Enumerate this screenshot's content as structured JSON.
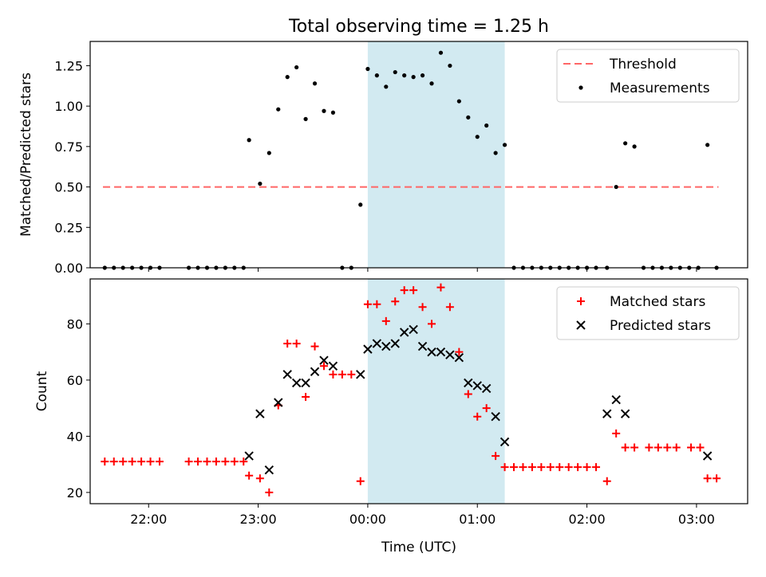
{
  "title": "Total observing time = 1.25 h",
  "chart_data": [
    {
      "type": "scatter",
      "title": "Total observing time = 1.25 h",
      "xlabel": "",
      "ylabel": "Matched/Predicted stars",
      "xlim": [
        "21:28",
        "03:28"
      ],
      "ylim": [
        0,
        1.4
      ],
      "yticks": [
        "0.00",
        "0.25",
        "0.50",
        "0.75",
        "1.00",
        "1.25"
      ],
      "legend_position": "top-right",
      "shaded_interval": [
        "00:00",
        "01:15"
      ],
      "shade_color": "#add8e6",
      "series": [
        {
          "name": "Threshold",
          "kind": "line",
          "style": "dashed",
          "color": "#ff6666",
          "points": [
            [
              "21:35",
              0.5
            ],
            [
              "03:12",
              0.5
            ]
          ]
        },
        {
          "name": "Measurements",
          "kind": "scatter",
          "marker": "dot",
          "color": "#000000",
          "points": [
            [
              "21:36",
              0
            ],
            [
              "21:41",
              0
            ],
            [
              "21:46",
              0
            ],
            [
              "21:51",
              0
            ],
            [
              "21:56",
              0
            ],
            [
              "22:01",
              0
            ],
            [
              "22:06",
              0
            ],
            [
              "22:22",
              0
            ],
            [
              "22:27",
              0
            ],
            [
              "22:32",
              0
            ],
            [
              "22:37",
              0
            ],
            [
              "22:42",
              0
            ],
            [
              "22:47",
              0
            ],
            [
              "22:52",
              0
            ],
            [
              "22:55",
              0.79
            ],
            [
              "23:01",
              0.52
            ],
            [
              "23:06",
              0.71
            ],
            [
              "23:11",
              0.98
            ],
            [
              "23:16",
              1.18
            ],
            [
              "23:21",
              1.24
            ],
            [
              "23:26",
              0.92
            ],
            [
              "23:31",
              1.14
            ],
            [
              "23:36",
              0.97
            ],
            [
              "23:41",
              0.96
            ],
            [
              "23:46",
              0
            ],
            [
              "23:51",
              0
            ],
            [
              "23:56",
              0.39
            ],
            [
              "00:00",
              1.23
            ],
            [
              "00:05",
              1.19
            ],
            [
              "00:10",
              1.12
            ],
            [
              "00:15",
              1.21
            ],
            [
              "00:20",
              1.19
            ],
            [
              "00:25",
              1.18
            ],
            [
              "00:30",
              1.19
            ],
            [
              "00:35",
              1.14
            ],
            [
              "00:40",
              1.33
            ],
            [
              "00:45",
              1.25
            ],
            [
              "00:50",
              1.03
            ],
            [
              "00:55",
              0.93
            ],
            [
              "01:00",
              0.81
            ],
            [
              "01:05",
              0.88
            ],
            [
              "01:10",
              0.71
            ],
            [
              "01:15",
              0.76
            ],
            [
              "01:20",
              0
            ],
            [
              "01:25",
              0
            ],
            [
              "01:30",
              0
            ],
            [
              "01:35",
              0
            ],
            [
              "01:40",
              0
            ],
            [
              "01:45",
              0
            ],
            [
              "01:50",
              0
            ],
            [
              "01:55",
              0
            ],
            [
              "02:00",
              0
            ],
            [
              "02:05",
              0
            ],
            [
              "02:11",
              0
            ],
            [
              "02:16",
              0.5
            ],
            [
              "02:21",
              0.77
            ],
            [
              "02:26",
              0.75
            ],
            [
              "02:31",
              0
            ],
            [
              "02:36",
              0
            ],
            [
              "02:41",
              0
            ],
            [
              "02:46",
              0
            ],
            [
              "02:51",
              0
            ],
            [
              "02:56",
              0
            ],
            [
              "03:01",
              0
            ],
            [
              "03:06",
              0.76
            ],
            [
              "03:11",
              0
            ]
          ]
        }
      ]
    },
    {
      "type": "scatter",
      "title": "",
      "xlabel": "Time (UTC)",
      "ylabel": "Count",
      "xlim": [
        "21:28",
        "03:28"
      ],
      "ylim": [
        16,
        96
      ],
      "yticks": [
        "20",
        "40",
        "60",
        "80"
      ],
      "xticks": [
        "22:00",
        "23:00",
        "00:00",
        "01:00",
        "02:00",
        "03:00"
      ],
      "legend_position": "top-right",
      "shaded_interval": [
        "00:00",
        "01:15"
      ],
      "shade_color": "#add8e6",
      "series": [
        {
          "name": "Matched stars",
          "kind": "scatter",
          "marker": "plus",
          "color": "#ff0000",
          "points": [
            [
              "21:36",
              31
            ],
            [
              "21:41",
              31
            ],
            [
              "21:46",
              31
            ],
            [
              "21:51",
              31
            ],
            [
              "21:56",
              31
            ],
            [
              "22:01",
              31
            ],
            [
              "22:06",
              31
            ],
            [
              "22:22",
              31
            ],
            [
              "22:27",
              31
            ],
            [
              "22:32",
              31
            ],
            [
              "22:37",
              31
            ],
            [
              "22:42",
              31
            ],
            [
              "22:47",
              31
            ],
            [
              "22:52",
              31
            ],
            [
              "22:55",
              26
            ],
            [
              "23:01",
              25
            ],
            [
              "23:06",
              20
            ],
            [
              "23:11",
              51
            ],
            [
              "23:16",
              73
            ],
            [
              "23:21",
              73
            ],
            [
              "23:26",
              54
            ],
            [
              "23:31",
              72
            ],
            [
              "23:36",
              65
            ],
            [
              "23:41",
              62
            ],
            [
              "23:46",
              62
            ],
            [
              "23:51",
              62
            ],
            [
              "23:56",
              24
            ],
            [
              "00:00",
              87
            ],
            [
              "00:05",
              87
            ],
            [
              "00:10",
              81
            ],
            [
              "00:15",
              88
            ],
            [
              "00:20",
              92
            ],
            [
              "00:25",
              92
            ],
            [
              "00:30",
              86
            ],
            [
              "00:35",
              80
            ],
            [
              "00:40",
              93
            ],
            [
              "00:45",
              86
            ],
            [
              "00:50",
              70
            ],
            [
              "00:55",
              55
            ],
            [
              "01:00",
              47
            ],
            [
              "01:05",
              50
            ],
            [
              "01:10",
              33
            ],
            [
              "01:15",
              29
            ],
            [
              "01:20",
              29
            ],
            [
              "01:25",
              29
            ],
            [
              "01:30",
              29
            ],
            [
              "01:35",
              29
            ],
            [
              "01:40",
              29
            ],
            [
              "01:45",
              29
            ],
            [
              "01:50",
              29
            ],
            [
              "01:55",
              29
            ],
            [
              "02:00",
              29
            ],
            [
              "02:05",
              29
            ],
            [
              "02:11",
              24
            ],
            [
              "02:16",
              41
            ],
            [
              "02:21",
              36
            ],
            [
              "02:26",
              36
            ],
            [
              "02:34",
              36
            ],
            [
              "02:39",
              36
            ],
            [
              "02:44",
              36
            ],
            [
              "02:49",
              36
            ],
            [
              "02:57",
              36
            ],
            [
              "03:02",
              36
            ],
            [
              "03:06",
              25
            ],
            [
              "03:11",
              25
            ]
          ]
        },
        {
          "name": "Predicted stars",
          "kind": "scatter",
          "marker": "x",
          "color": "#000000",
          "points": [
            [
              "22:55",
              33
            ],
            [
              "23:01",
              48
            ],
            [
              "23:06",
              28
            ],
            [
              "23:11",
              52
            ],
            [
              "23:16",
              62
            ],
            [
              "23:21",
              59
            ],
            [
              "23:26",
              59
            ],
            [
              "23:31",
              63
            ],
            [
              "23:36",
              67
            ],
            [
              "23:41",
              65
            ],
            [
              "23:56",
              62
            ],
            [
              "00:00",
              71
            ],
            [
              "00:05",
              73
            ],
            [
              "00:10",
              72
            ],
            [
              "00:15",
              73
            ],
            [
              "00:20",
              77
            ],
            [
              "00:25",
              78
            ],
            [
              "00:30",
              72
            ],
            [
              "00:35",
              70
            ],
            [
              "00:40",
              70
            ],
            [
              "00:45",
              69
            ],
            [
              "00:50",
              68
            ],
            [
              "00:55",
              59
            ],
            [
              "01:00",
              58
            ],
            [
              "01:05",
              57
            ],
            [
              "01:10",
              47
            ],
            [
              "01:15",
              38
            ],
            [
              "02:11",
              48
            ],
            [
              "02:16",
              53
            ],
            [
              "02:21",
              48
            ],
            [
              "03:06",
              33
            ]
          ]
        }
      ]
    }
  ]
}
